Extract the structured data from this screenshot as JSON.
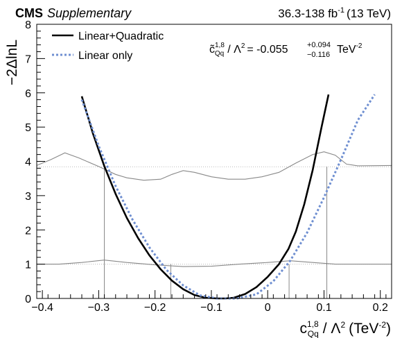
{
  "header": {
    "experiment": "CMS",
    "tag": "Supplementary",
    "lumi_text": "36.3-138 fb",
    "lumi_sup": "-1",
    "energy_text": "(13 TeV)"
  },
  "result": {
    "symbol": "c̃",
    "symbol_sup": "1,8",
    "symbol_sub": "Qq",
    "lambda_text": "/ Λ",
    "lambda_sup": "2",
    "equals_value": "= -0.055",
    "err_up": "+0.094",
    "err_down": "−0.116",
    "unit": "TeV",
    "unit_sup": "-2"
  },
  "chart_data": {
    "type": "line",
    "xlabel": {
      "base": "c",
      "sup": "1,8",
      "sub": "Qq",
      "middle": "/ Λ",
      "middle_sup": "2",
      "unit_open": "(TeV",
      "unit_sup": "-2",
      "unit_close": ")"
    },
    "ylabel": "−2ΔlnL",
    "xlim": [
      -0.41,
      0.22
    ],
    "ylim": [
      0,
      8
    ],
    "xticks": [
      -0.4,
      -0.3,
      -0.2,
      -0.1,
      0,
      0.1,
      0.2
    ],
    "xtick_labels": [
      "−0.4",
      "−0.3",
      "−0.2",
      "−0.1",
      "0",
      "0.1",
      "0.2"
    ],
    "yticks": [
      0,
      1,
      2,
      3,
      4,
      5,
      6,
      7,
      8
    ],
    "ytick_labels": [
      "0",
      "1",
      "2",
      "3",
      "4",
      "5",
      "6",
      "7",
      "8"
    ],
    "legend_position": "top-left",
    "series": [
      {
        "name": "Linear+Quadratic",
        "color": "#000000",
        "style": "solid",
        "x": [
          -0.33,
          -0.31,
          -0.29,
          -0.27,
          -0.25,
          -0.23,
          -0.21,
          -0.19,
          -0.17,
          -0.15,
          -0.13,
          -0.11,
          -0.09,
          -0.075,
          -0.06,
          -0.04,
          -0.02,
          0.0,
          0.02,
          0.037,
          0.05,
          0.065,
          0.08,
          0.095,
          0.108
        ],
        "y": [
          5.9,
          4.8,
          3.86,
          3.05,
          2.35,
          1.76,
          1.26,
          0.85,
          0.52,
          0.27,
          0.1,
          0.02,
          0.0,
          0.0,
          0.02,
          0.13,
          0.33,
          0.63,
          1.0,
          1.45,
          1.95,
          2.75,
          3.75,
          4.95,
          5.95
        ]
      },
      {
        "name": "Linear only",
        "color": "#6f8fd1",
        "style": "dotted",
        "x": [
          -0.33,
          -0.3,
          -0.27,
          -0.24,
          -0.21,
          -0.18,
          -0.15,
          -0.12,
          -0.09,
          -0.055,
          -0.02,
          0.01,
          0.04,
          0.07,
          0.1,
          0.13,
          0.16,
          0.19
        ],
        "y": [
          5.8,
          4.45,
          3.28,
          2.3,
          1.49,
          0.84,
          0.38,
          0.09,
          0.0,
          0.0,
          0.12,
          0.5,
          1.1,
          1.92,
          2.95,
          4.05,
          5.2,
          5.95
        ]
      }
    ],
    "overlay_lines": [
      {
        "description_level": 3.84,
        "x": [
          -0.41,
          -0.385,
          -0.36,
          -0.335,
          -0.3,
          -0.27,
          -0.25,
          -0.22,
          -0.19,
          -0.17,
          -0.15,
          -0.13,
          -0.1,
          -0.07,
          -0.04,
          -0.01,
          0.02,
          0.05,
          0.08,
          0.1,
          0.12,
          0.14,
          0.16,
          0.22
        ],
        "y": [
          3.88,
          4.05,
          4.25,
          4.1,
          3.85,
          3.62,
          3.52,
          3.45,
          3.48,
          3.62,
          3.73,
          3.68,
          3.55,
          3.48,
          3.48,
          3.55,
          3.68,
          3.95,
          4.2,
          4.28,
          4.18,
          3.92,
          3.87,
          3.88
        ]
      },
      {
        "description_level": 1.0,
        "x": [
          -0.41,
          -0.37,
          -0.33,
          -0.29,
          -0.25,
          -0.2,
          -0.15,
          -0.1,
          -0.05,
          0.0,
          0.04,
          0.08,
          0.12,
          0.16,
          0.22
        ],
        "y": [
          1.0,
          1.0,
          1.05,
          1.12,
          1.05,
          0.98,
          0.93,
          0.94,
          1.0,
          1.05,
          1.1,
          1.05,
          1.0,
          1.0,
          1.0
        ]
      }
    ],
    "reference_levels": [
      1.0,
      3.84
    ],
    "interval_markers": [
      {
        "x": -0.29,
        "y": 3.84
      },
      {
        "x": -0.172,
        "y": 1.0
      },
      {
        "x": 0.038,
        "y": 1.0
      },
      {
        "x": 0.105,
        "y": 3.84
      }
    ]
  }
}
